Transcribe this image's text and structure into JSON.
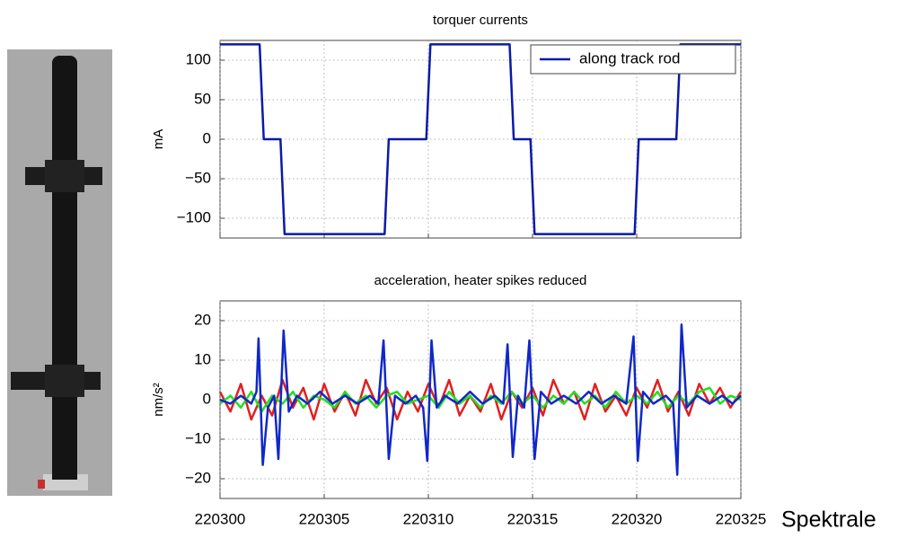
{
  "chart_data": [
    {
      "type": "line",
      "title": "torquer currents",
      "ylabel": "mA",
      "xlim": [
        220300,
        220325
      ],
      "xticks": [
        220300,
        220305,
        220310,
        220315,
        220320,
        220325
      ],
      "show_xtick_labels": false,
      "ylim": [
        -125,
        125
      ],
      "yticks": [
        {
          "value": -100,
          "label": "−100"
        },
        {
          "value": -50,
          "label": "−50"
        },
        0,
        50,
        100
      ],
      "grid": true,
      "legend": "upper right",
      "series": [
        {
          "name": "along track rod",
          "color": "#0a1aa8",
          "x": [
            220300,
            220301.9,
            220302.1,
            220302.9,
            220303.1,
            220307.9,
            220308.1,
            220309.9,
            220310.1,
            220313.9,
            220314.1,
            220314.9,
            220315.1,
            220319.9,
            220320.1,
            220321.9,
            220322.1,
            220325
          ],
          "values": [
            120,
            120,
            0,
            0,
            -120,
            -120,
            0,
            0,
            120,
            120,
            0,
            0,
            -120,
            -120,
            0,
            0,
            120,
            120
          ]
        }
      ]
    },
    {
      "type": "line",
      "title": "acceleration, heater spikes reduced",
      "ylabel": "nm/s²",
      "xlim": [
        220300,
        220325
      ],
      "xticks": [
        220300,
        220305,
        220310,
        220315,
        220320,
        220325
      ],
      "show_xtick_labels": true,
      "ylim": [
        -25,
        25
      ],
      "yticks": [
        {
          "value": -20,
          "label": "−20"
        },
        {
          "value": -10,
          "label": "−10"
        },
        0,
        10,
        20
      ],
      "grid": true,
      "series": [
        {
          "color": "#e02020",
          "x": [
            220300,
            220300.5,
            220301,
            220301.5,
            220302,
            220302.5,
            220303,
            220303.5,
            220304,
            220304.5,
            220305,
            220305.5,
            220306,
            220306.5,
            220307,
            220307.5,
            220308,
            220308.5,
            220309,
            220309.5,
            220310,
            220310.5,
            220311,
            220311.5,
            220312,
            220312.5,
            220313,
            220313.5,
            220314,
            220314.5,
            220315,
            220315.5,
            220316,
            220316.5,
            220317,
            220317.5,
            220318,
            220318.5,
            220319,
            220319.5,
            220320,
            220320.5,
            220321,
            220321.5,
            220322,
            220322.5,
            220323,
            220323.5,
            220324,
            220324.5,
            220325
          ],
          "values": [
            2,
            -3,
            4,
            -5,
            1,
            -4,
            5,
            -2,
            3,
            -5,
            4,
            -3,
            2,
            -4,
            5,
            -1,
            3,
            -5,
            2,
            -3,
            4,
            -2,
            5,
            -4,
            1,
            -3,
            4,
            -5,
            2,
            -2,
            3,
            -4,
            5,
            -1,
            2,
            -5,
            4,
            -3,
            1,
            -4,
            3,
            -2,
            5,
            -3,
            2,
            -4,
            4,
            -1,
            3,
            -2,
            2
          ]
        },
        {
          "color": "#20e020",
          "x": [
            220300,
            220300.5,
            220301,
            220301.5,
            220302,
            220302.5,
            220303,
            220303.5,
            220304,
            220304.5,
            220305,
            220305.5,
            220306,
            220306.5,
            220307,
            220307.5,
            220308,
            220308.5,
            220309,
            220309.5,
            220310,
            220310.5,
            220311,
            220311.5,
            220312,
            220312.5,
            220313,
            220313.5,
            220314,
            220314.5,
            220315,
            220315.5,
            220316,
            220316.5,
            220317,
            220317.5,
            220318,
            220318.5,
            220319,
            220319.5,
            220320,
            220320.5,
            220321,
            220321.5,
            220322,
            220322.5,
            220323,
            220323.5,
            220324,
            220324.5,
            220325
          ],
          "values": [
            -1,
            1,
            -2,
            2,
            -3,
            1,
            -1,
            2,
            -2,
            1,
            0,
            -2,
            2,
            -1,
            1,
            -2,
            1,
            2,
            -1,
            0,
            1,
            -2,
            2,
            -1,
            1,
            -2,
            1,
            -1,
            2,
            -1,
            1,
            -2,
            1,
            -1,
            2,
            -1,
            1,
            -2,
            2,
            -1,
            1,
            -1,
            2,
            -2,
            1,
            -1,
            2,
            3,
            -1,
            1,
            0
          ]
        },
        {
          "color": "#1028c8",
          "x": [
            220300,
            220300.5,
            220301,
            220301.5,
            220301.75,
            220301.85,
            220302.05,
            220302.3,
            220302.6,
            220302.8,
            220303.05,
            220303.3,
            220303.7,
            220304.2,
            220304.8,
            220305.4,
            220306,
            220306.6,
            220307.2,
            220307.6,
            220307.85,
            220308.1,
            220308.4,
            220308.9,
            220309.4,
            220309.75,
            220309.95,
            220310.15,
            220310.4,
            220310.8,
            220311.4,
            220312,
            220312.6,
            220313.2,
            220313.6,
            220313.8,
            220314.05,
            220314.3,
            220314.6,
            220314.85,
            220315.1,
            220315.4,
            220315.9,
            220316.5,
            220317.1,
            220317.7,
            220318.3,
            220318.9,
            220319.5,
            220319.85,
            220320.05,
            220320.3,
            220320.8,
            220321.4,
            220321.75,
            220321.95,
            220322.15,
            220322.4,
            220322.9,
            220323.5,
            220324.1,
            220324.6,
            220325
          ],
          "values": [
            0,
            -1,
            1,
            -1,
            2,
            15.5,
            -16.5,
            -2,
            1,
            -15,
            17.5,
            -3,
            1,
            -1,
            2,
            -1,
            1,
            -1,
            1,
            -1,
            15,
            -15,
            1,
            -1,
            1,
            -2,
            -15.5,
            15,
            -2,
            1,
            -1,
            2,
            -1,
            1,
            -1,
            14,
            -14.5,
            1,
            -2,
            15,
            -15,
            2,
            -1,
            1,
            -1,
            2,
            -1,
            1,
            -1,
            16,
            -15.5,
            2,
            -1,
            1,
            -1,
            -19,
            19,
            -2,
            1,
            -1,
            1,
            -1,
            1
          ]
        }
      ]
    }
  ],
  "caption": "Spektrale"
}
